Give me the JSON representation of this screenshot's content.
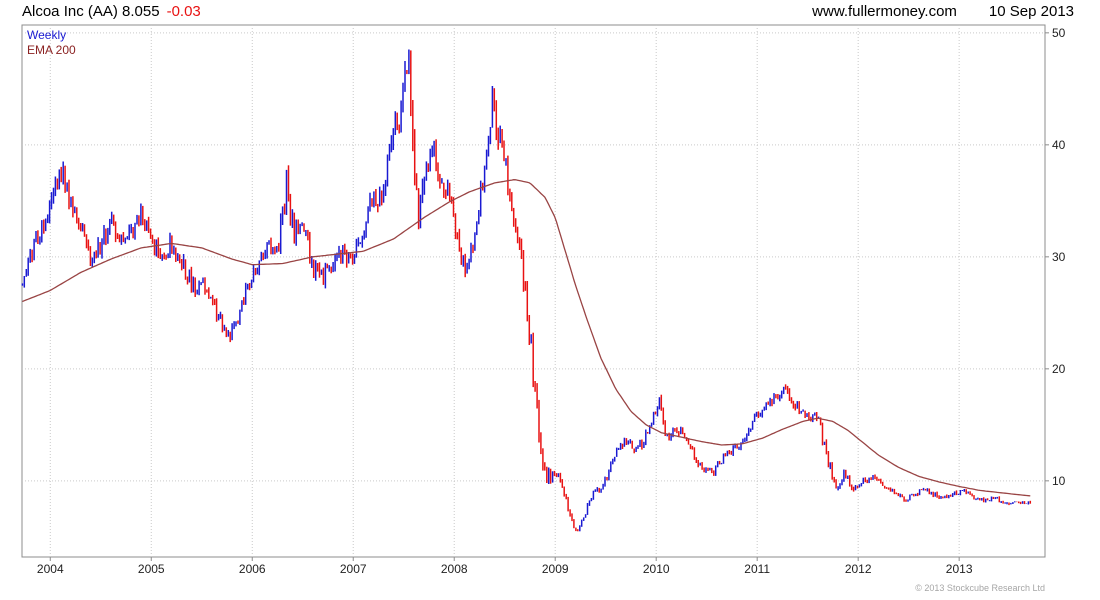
{
  "header": {
    "title": "Alcoa Inc (AA) 8.055",
    "change": "-0.03",
    "site": "www.fullermoney.com",
    "date": "10 Sep 2013"
  },
  "legend": {
    "weekly": "Weekly",
    "ema": "EMA 200"
  },
  "footer": {
    "copyright": "© 2013 Stockcube Research Ltd"
  },
  "colors": {
    "up": "#1a1ad2",
    "down": "#e81212",
    "ema": "#994444",
    "ema_text": "#8b2222",
    "grid": "#c9c9c9",
    "border": "#8c8c8c",
    "axis_text": "#222222"
  },
  "chart_data": {
    "type": "candlestick",
    "title": "Alcoa Inc (AA) weekly candles with 200-week EMA",
    "x_unit": "year (decimal)",
    "y_unit": "price (USD)",
    "xlim": [
      2003.72,
      2013.85
    ],
    "ylim": [
      3.2,
      50.7
    ],
    "xticks": [
      2004,
      2005,
      2006,
      2007,
      2008,
      2009,
      2010,
      2011,
      2012,
      2013
    ],
    "yticks": [
      10,
      20,
      30,
      40,
      50
    ],
    "grid": "dotted gray lines at each ytick and each year start",
    "legend_position": "top-left inside plot",
    "last_price": 8.055,
    "change": -0.03,
    "price_anchors_desc": "weekly close trajectory anchors [year, close, relative-volatility], read from chart",
    "price_anchors": [
      [
        2003.72,
        27.5,
        1.0
      ],
      [
        2003.85,
        31.0,
        1.0
      ],
      [
        2004.0,
        34.0,
        1.0
      ],
      [
        2004.1,
        38.0,
        1.1
      ],
      [
        2004.18,
        35.5,
        1.0
      ],
      [
        2004.3,
        33.0,
        1.0
      ],
      [
        2004.4,
        29.5,
        1.0
      ],
      [
        2004.5,
        31.0,
        1.0
      ],
      [
        2004.6,
        33.5,
        1.0
      ],
      [
        2004.7,
        31.0,
        1.0
      ],
      [
        2004.8,
        32.5,
        1.0
      ],
      [
        2004.9,
        34.5,
        1.0
      ],
      [
        2005.0,
        31.5,
        1.0
      ],
      [
        2005.1,
        29.5,
        1.0
      ],
      [
        2005.2,
        31.5,
        1.0
      ],
      [
        2005.32,
        29.0,
        1.0
      ],
      [
        2005.45,
        27.0,
        1.0
      ],
      [
        2005.55,
        27.5,
        1.0
      ],
      [
        2005.65,
        25.0,
        1.0
      ],
      [
        2005.76,
        22.8,
        1.0
      ],
      [
        2005.86,
        24.5,
        1.0
      ],
      [
        2005.95,
        27.5,
        1.0
      ],
      [
        2006.05,
        29.5,
        1.0
      ],
      [
        2006.15,
        31.0,
        1.0
      ],
      [
        2006.25,
        30.5,
        1.0
      ],
      [
        2006.34,
        36.3,
        1.3
      ],
      [
        2006.42,
        31.5,
        1.2
      ],
      [
        2006.5,
        33.5,
        1.0
      ],
      [
        2006.6,
        28.8,
        1.0
      ],
      [
        2006.7,
        28.0,
        1.0
      ],
      [
        2006.8,
        29.5,
        1.0
      ],
      [
        2006.9,
        30.5,
        1.0
      ],
      [
        2007.0,
        30.0,
        1.0
      ],
      [
        2007.1,
        32.5,
        1.0
      ],
      [
        2007.18,
        35.0,
        1.0
      ],
      [
        2007.28,
        35.5,
        1.0
      ],
      [
        2007.38,
        40.5,
        1.1
      ],
      [
        2007.48,
        42.5,
        1.1
      ],
      [
        2007.54,
        48.0,
        1.5
      ],
      [
        2007.6,
        38.5,
        1.8
      ],
      [
        2007.64,
        33.5,
        1.6
      ],
      [
        2007.72,
        37.5,
        1.2
      ],
      [
        2007.79,
        39.5,
        1.1
      ],
      [
        2007.87,
        37.0,
        1.0
      ],
      [
        2007.95,
        35.5,
        1.0
      ],
      [
        2008.03,
        31.5,
        1.2
      ],
      [
        2008.12,
        27.8,
        1.2
      ],
      [
        2008.22,
        33.0,
        1.1
      ],
      [
        2008.3,
        38.0,
        1.1
      ],
      [
        2008.38,
        43.8,
        1.2
      ],
      [
        2008.46,
        40.0,
        1.1
      ],
      [
        2008.54,
        36.5,
        1.1
      ],
      [
        2008.62,
        31.5,
        1.3
      ],
      [
        2008.7,
        27.5,
        1.6
      ],
      [
        2008.76,
        22.0,
        2.2
      ],
      [
        2008.83,
        14.5,
        2.8
      ],
      [
        2008.9,
        10.5,
        2.6
      ],
      [
        2008.97,
        10.2,
        2.0
      ],
      [
        2009.03,
        11.0,
        1.8
      ],
      [
        2009.1,
        8.5,
        1.8
      ],
      [
        2009.17,
        6.2,
        1.6
      ],
      [
        2009.22,
        5.5,
        1.5
      ],
      [
        2009.3,
        7.2,
        1.5
      ],
      [
        2009.38,
        9.2,
        1.5
      ],
      [
        2009.46,
        9.3,
        1.3
      ],
      [
        2009.54,
        11.0,
        1.2
      ],
      [
        2009.62,
        12.8,
        1.2
      ],
      [
        2009.7,
        13.5,
        1.1
      ],
      [
        2009.78,
        12.8,
        1.1
      ],
      [
        2009.86,
        13.3,
        1.1
      ],
      [
        2009.95,
        15.5,
        1.1
      ],
      [
        2010.03,
        17.0,
        1.2
      ],
      [
        2010.1,
        14.0,
        1.3
      ],
      [
        2010.2,
        14.5,
        1.1
      ],
      [
        2010.3,
        14.0,
        1.1
      ],
      [
        2010.38,
        12.0,
        1.2
      ],
      [
        2010.48,
        11.0,
        1.1
      ],
      [
        2010.57,
        10.8,
        1.1
      ],
      [
        2010.66,
        12.0,
        1.0
      ],
      [
        2010.76,
        12.8,
        1.0
      ],
      [
        2010.86,
        13.5,
        1.0
      ],
      [
        2010.95,
        15.2,
        1.0
      ],
      [
        2011.05,
        16.5,
        1.0
      ],
      [
        2011.15,
        17.2,
        1.0
      ],
      [
        2011.27,
        18.0,
        1.0
      ],
      [
        2011.35,
        17.0,
        1.0
      ],
      [
        2011.45,
        16.3,
        1.0
      ],
      [
        2011.53,
        15.8,
        1.0
      ],
      [
        2011.6,
        15.9,
        1.0
      ],
      [
        2011.67,
        12.8,
        1.5
      ],
      [
        2011.74,
        10.5,
        1.6
      ],
      [
        2011.79,
        9.3,
        1.5
      ],
      [
        2011.86,
        10.8,
        1.3
      ],
      [
        2011.95,
        9.0,
        1.2
      ],
      [
        2012.03,
        9.9,
        1.1
      ],
      [
        2012.13,
        10.3,
        1.0
      ],
      [
        2012.25,
        9.6,
        1.0
      ],
      [
        2012.35,
        9.0,
        1.0
      ],
      [
        2012.46,
        8.3,
        1.0
      ],
      [
        2012.56,
        8.9,
        1.0
      ],
      [
        2012.66,
        9.2,
        0.9
      ],
      [
        2012.78,
        8.7,
        0.9
      ],
      [
        2012.88,
        8.4,
        0.9
      ],
      [
        2012.97,
        8.9,
        0.9
      ],
      [
        2013.06,
        9.1,
        0.8
      ],
      [
        2013.16,
        8.4,
        0.8
      ],
      [
        2013.26,
        8.2,
        0.8
      ],
      [
        2013.36,
        8.5,
        0.8
      ],
      [
        2013.46,
        7.9,
        0.8
      ],
      [
        2013.56,
        8.1,
        0.7
      ],
      [
        2013.64,
        8.0,
        0.7
      ],
      [
        2013.71,
        8.055,
        0.7
      ]
    ],
    "ema_anchors_desc": "200-week EMA line anchors [year, value], read from chart",
    "ema_anchors": [
      [
        2003.72,
        26.0
      ],
      [
        2004.0,
        27.0
      ],
      [
        2004.3,
        28.6
      ],
      [
        2004.6,
        29.8
      ],
      [
        2004.9,
        30.8
      ],
      [
        2005.2,
        31.2
      ],
      [
        2005.5,
        30.8
      ],
      [
        2005.8,
        29.8
      ],
      [
        2006.0,
        29.3
      ],
      [
        2006.3,
        29.4
      ],
      [
        2006.6,
        30.0
      ],
      [
        2006.9,
        30.3
      ],
      [
        2007.1,
        30.5
      ],
      [
        2007.4,
        31.6
      ],
      [
        2007.7,
        33.5
      ],
      [
        2007.95,
        34.9
      ],
      [
        2008.15,
        35.8
      ],
      [
        2008.4,
        36.6
      ],
      [
        2008.6,
        36.9
      ],
      [
        2008.75,
        36.6
      ],
      [
        2008.9,
        35.3
      ],
      [
        2009.0,
        33.5
      ],
      [
        2009.1,
        30.5
      ],
      [
        2009.2,
        27.5
      ],
      [
        2009.3,
        24.8
      ],
      [
        2009.45,
        21.0
      ],
      [
        2009.6,
        18.2
      ],
      [
        2009.75,
        16.2
      ],
      [
        2009.9,
        15.0
      ],
      [
        2010.05,
        14.3
      ],
      [
        2010.25,
        13.9
      ],
      [
        2010.45,
        13.5
      ],
      [
        2010.65,
        13.2
      ],
      [
        2010.85,
        13.3
      ],
      [
        2011.05,
        13.8
      ],
      [
        2011.25,
        14.6
      ],
      [
        2011.45,
        15.3
      ],
      [
        2011.6,
        15.6
      ],
      [
        2011.75,
        15.3
      ],
      [
        2011.9,
        14.5
      ],
      [
        2012.05,
        13.4
      ],
      [
        2012.2,
        12.3
      ],
      [
        2012.4,
        11.2
      ],
      [
        2012.6,
        10.4
      ],
      [
        2012.8,
        9.9
      ],
      [
        2013.0,
        9.5
      ],
      [
        2013.2,
        9.15
      ],
      [
        2013.4,
        8.95
      ],
      [
        2013.55,
        8.8
      ],
      [
        2013.71,
        8.65
      ]
    ]
  }
}
